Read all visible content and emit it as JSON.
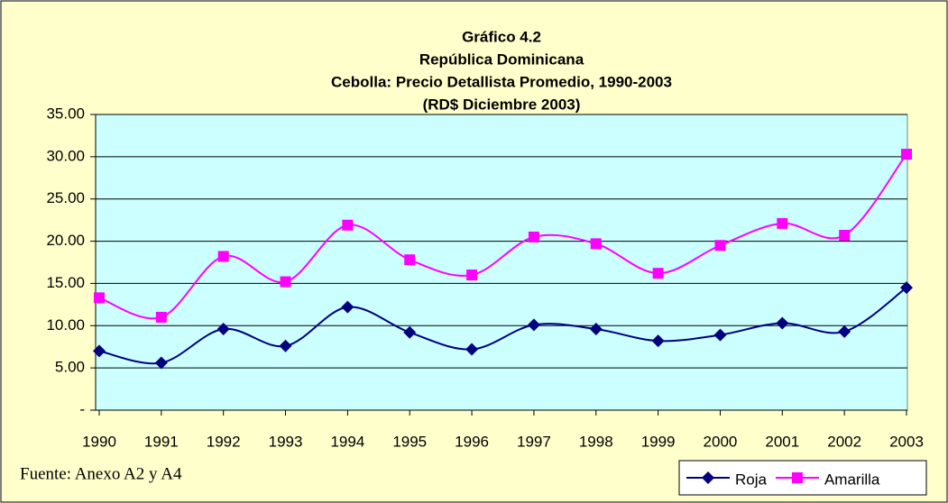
{
  "chart_data": {
    "type": "line",
    "title": [
      "Gráfico 4.2",
      "República Dominicana",
      "Cebolla: Precio Detallista Promedio, 1990-2003",
      "(RD$ Diciembre 2003)"
    ],
    "source": "Fuente: Anexo A2 y A4",
    "categories": [
      "1990",
      "1991",
      "1992",
      "1993",
      "1994",
      "1995",
      "1996",
      "1997",
      "1998",
      "1999",
      "2000",
      "2001",
      "2002",
      "2003"
    ],
    "series": [
      {
        "name": "Roja",
        "color": "#000080",
        "marker": "diamond",
        "values": [
          7.0,
          5.6,
          9.6,
          7.6,
          12.2,
          9.2,
          7.2,
          10.1,
          9.6,
          8.2,
          8.9,
          10.3,
          9.3,
          14.5
        ]
      },
      {
        "name": "Amarilla",
        "color": "#FF00FF",
        "marker": "square",
        "values": [
          13.3,
          11.0,
          18.2,
          15.2,
          21.9,
          17.8,
          16.0,
          20.5,
          19.7,
          16.2,
          19.5,
          22.1,
          20.7,
          30.3
        ]
      }
    ],
    "ylim": [
      0,
      35
    ],
    "yticks": [
      {
        "value": 0,
        "label": "-"
      },
      {
        "value": 5,
        "label": "5.00"
      },
      {
        "value": 10,
        "label": "10.00"
      },
      {
        "value": 15,
        "label": "15.00"
      },
      {
        "value": 20,
        "label": "20.00"
      },
      {
        "value": 25,
        "label": "25.00"
      },
      {
        "value": 30,
        "label": "30.00"
      },
      {
        "value": 35,
        "label": "35.00"
      }
    ],
    "grid": true,
    "smooth": true,
    "legend": "lower right"
  }
}
